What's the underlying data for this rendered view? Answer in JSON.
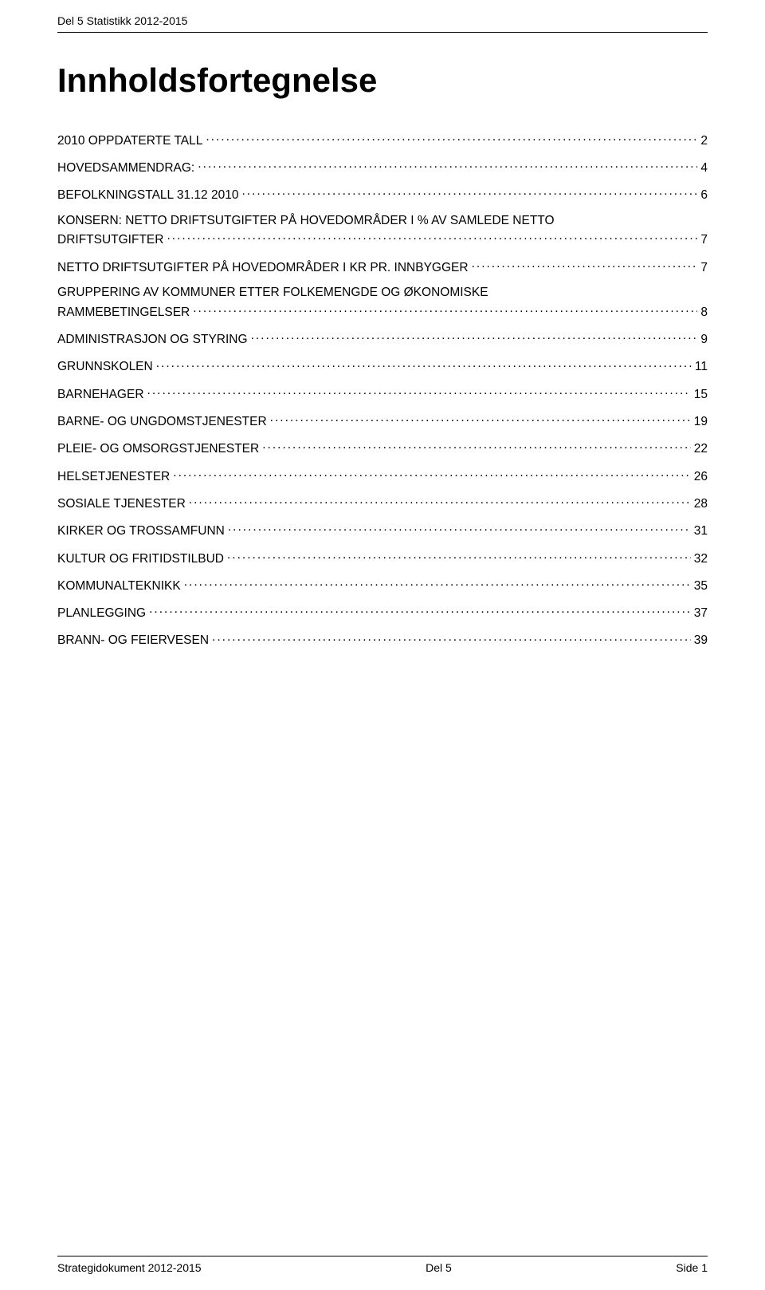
{
  "header": {
    "text": "Del 5 Statistikk 2012-2015"
  },
  "title": "Innholdsfortegnelse",
  "toc": [
    {
      "label": "2010 OPPDATERTE TALL",
      "page": "2"
    },
    {
      "label": "HOVEDSAMMENDRAG:",
      "page": "4"
    },
    {
      "label": "BEFOLKNINGSTALL 31.12 2010",
      "page": "6"
    },
    {
      "label": "KONSERN: NETTO DRIFTSUTGIFTER PÅ HOVEDOMRÅDER I % AV SAMLEDE NETTO\nDRIFTSUTGIFTER",
      "page": "7"
    },
    {
      "label": "NETTO DRIFTSUTGIFTER PÅ HOVEDOMRÅDER I KR PR. INNBYGGER",
      "page": "7"
    },
    {
      "label": "GRUPPERING AV KOMMUNER ETTER FOLKEMENGDE OG ØKONOMISKE\nRAMMEBETINGELSER",
      "page": "8"
    },
    {
      "label": "ADMINISTRASJON OG STYRING",
      "page": "9"
    },
    {
      "label": "GRUNNSKOLEN",
      "page": "11"
    },
    {
      "label": "BARNEHAGER",
      "page": "15"
    },
    {
      "label": "BARNE- OG UNGDOMSTJENESTER",
      "page": "19"
    },
    {
      "label": "PLEIE- OG OMSORGSTJENESTER",
      "page": "22"
    },
    {
      "label": "HELSETJENESTER",
      "page": "26"
    },
    {
      "label": "SOSIALE TJENESTER",
      "page": "28"
    },
    {
      "label": "KIRKER OG TROSSAMFUNN",
      "page": "31"
    },
    {
      "label": "KULTUR OG FRITIDSTILBUD",
      "page": "32"
    },
    {
      "label": "KOMMUNALTEKNIKK",
      "page": "35"
    },
    {
      "label": "PLANLEGGING",
      "page": "37"
    },
    {
      "label": "BRANN- OG FEIERVESEN",
      "page": "39"
    }
  ],
  "footer": {
    "left": "Strategidokument 2012-2015",
    "center": "Del 5",
    "right": "Side 1"
  }
}
